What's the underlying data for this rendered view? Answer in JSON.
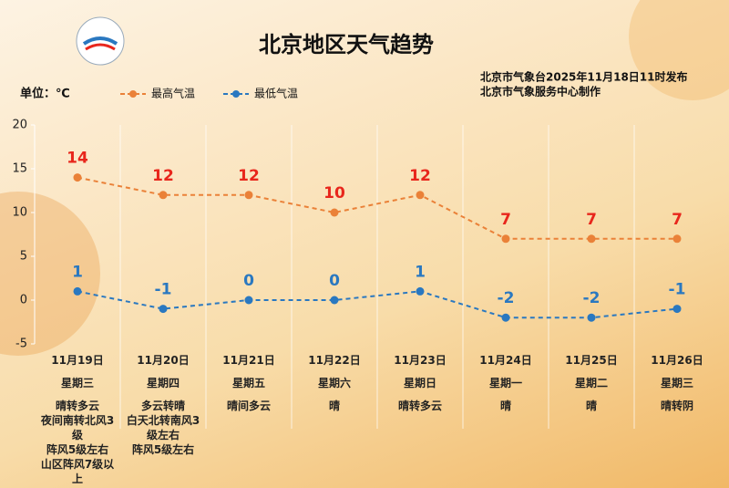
{
  "chart_data": {
    "type": "line",
    "title": "北京地区天气趋势",
    "unit_label": "单位：℃",
    "source": [
      "北京市气象台2025年11月18日11时发布",
      "北京市气象服务中心制作"
    ],
    "categories": [
      "11月19日",
      "11月20日",
      "11月21日",
      "11月22日",
      "11月23日",
      "11月24日",
      "11月25日",
      "11月26日"
    ],
    "weekdays": [
      "星期三",
      "星期四",
      "星期五",
      "星期六",
      "星期日",
      "星期一",
      "星期二",
      "星期三"
    ],
    "weather": [
      [
        "晴转多云",
        "夜间南转北风3级",
        "阵风5级左右",
        "山区阵风7级以上"
      ],
      [
        "多云转晴",
        "白天北转南风3级左右",
        "阵风5级左右"
      ],
      [
        "晴间多云"
      ],
      [
        "晴"
      ],
      [
        "晴转多云"
      ],
      [
        "晴"
      ],
      [
        "晴"
      ],
      [
        "晴转阴"
      ]
    ],
    "series": [
      {
        "name": "最高气温",
        "color": "#ea8138",
        "label_color": "#e8261c",
        "values": [
          14,
          12,
          12,
          10,
          12,
          7,
          7,
          7
        ]
      },
      {
        "name": "最低气温",
        "color": "#2a78c0",
        "label_color": "#2a78c0",
        "values": [
          1,
          -1,
          0,
          0,
          1,
          -2,
          -2,
          -1
        ]
      }
    ],
    "ylim": [
      -5,
      20
    ],
    "yticks": [
      -5,
      0,
      5,
      10,
      15,
      20
    ]
  }
}
